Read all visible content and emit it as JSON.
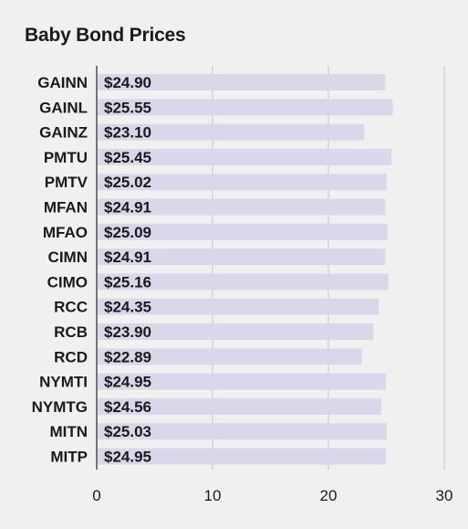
{
  "chart_data": {
    "type": "bar",
    "orientation": "horizontal",
    "title": "Baby Bond Prices",
    "categories": [
      "GAINN",
      "GAINL",
      "GAINZ",
      "PMTU",
      "PMTV",
      "MFAN",
      "MFAO",
      "CIMN",
      "CIMO",
      "RCC",
      "RCB",
      "RCD",
      "NYMTI",
      "NYMTG",
      "MITN",
      "MITP"
    ],
    "values": [
      24.9,
      25.55,
      23.1,
      25.45,
      25.02,
      24.91,
      25.09,
      24.91,
      25.16,
      24.35,
      23.9,
      22.89,
      24.95,
      24.56,
      25.03,
      24.95
    ],
    "value_labels": [
      "$24.90",
      "$25.55",
      "$23.10",
      "$25.45",
      "$25.02",
      "$24.91",
      "$25.09",
      "$24.91",
      "$25.16",
      "$24.35",
      "$23.90",
      "$22.89",
      "$24.95",
      "$24.56",
      "$25.03",
      "$24.95"
    ],
    "xlim": [
      0,
      30
    ],
    "xticks": [
      "0",
      "10",
      "20",
      "30"
    ],
    "grid": "vertical",
    "bar_color": "#dcd6ea"
  }
}
